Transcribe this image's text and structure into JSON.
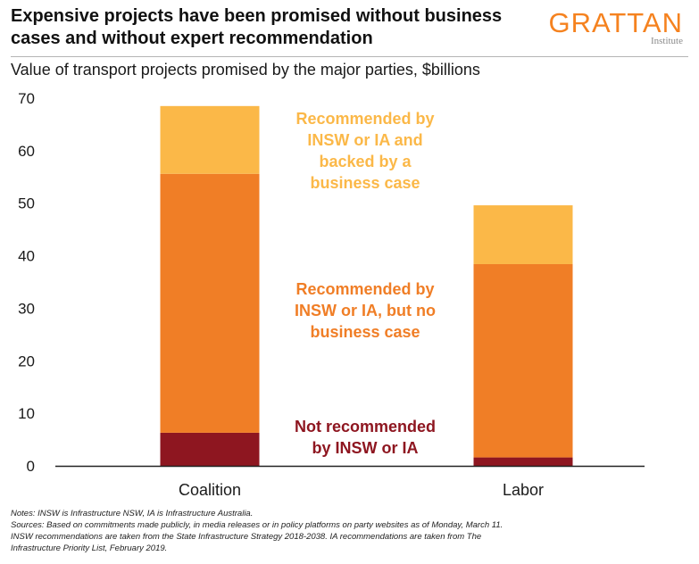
{
  "header": {
    "title": "Expensive projects have been promised without business cases and without expert recommendation",
    "subtitle": "Value of transport projects promised by the major parties, $billions"
  },
  "logo": {
    "name": "GRATTAN",
    "sub": "Institute"
  },
  "colors": {
    "not_recommended": "#8e1620",
    "recommended_no_case": "#f07e26",
    "recommended_with_case": "#fbb848",
    "axis": "#222222",
    "logo": "#f5821f"
  },
  "chart_data": {
    "type": "bar",
    "stacked": true,
    "categories": [
      "Coalition",
      "Labor"
    ],
    "series": [
      {
        "name": "Not recommended by INSW or IA",
        "values": [
          6.3,
          1.6
        ]
      },
      {
        "name": "Recommended by INSW or IA, but no business case",
        "values": [
          49.3,
          36.8
        ]
      },
      {
        "name": "Recommended by INSW or IA and backed by a business case",
        "values": [
          12.9,
          11.2
        ]
      }
    ],
    "series_labels": [
      {
        "lines": [
          "Not recommended",
          "by INSW or IA"
        ]
      },
      {
        "lines": [
          "Recommended by",
          "INSW or IA, but no",
          "business case"
        ]
      },
      {
        "lines": [
          "Recommended by",
          "INSW or IA and",
          "backed by a",
          "business case"
        ]
      }
    ],
    "title": "Value of transport projects promised by the major parties, $billions",
    "xlabel": "",
    "ylabel": "$billions",
    "ylim": [
      0,
      70
    ],
    "yticks": [
      0,
      10,
      20,
      30,
      40,
      50,
      60,
      70
    ],
    "grid": false,
    "legend": "inline labels"
  },
  "notes": {
    "lines": [
      "Notes: INSW is Infrastructure NSW, IA is Infrastructure Australia.",
      "Sources: Based on commitments made publicly, in media releases or in policy platforms on party websites as of Monday, March 11.",
      "INSW recommendations are taken from the State Infrastructure Strategy 2018-2038. IA recommendations are taken from The",
      "Infrastructure Priority List, February 2019."
    ]
  }
}
